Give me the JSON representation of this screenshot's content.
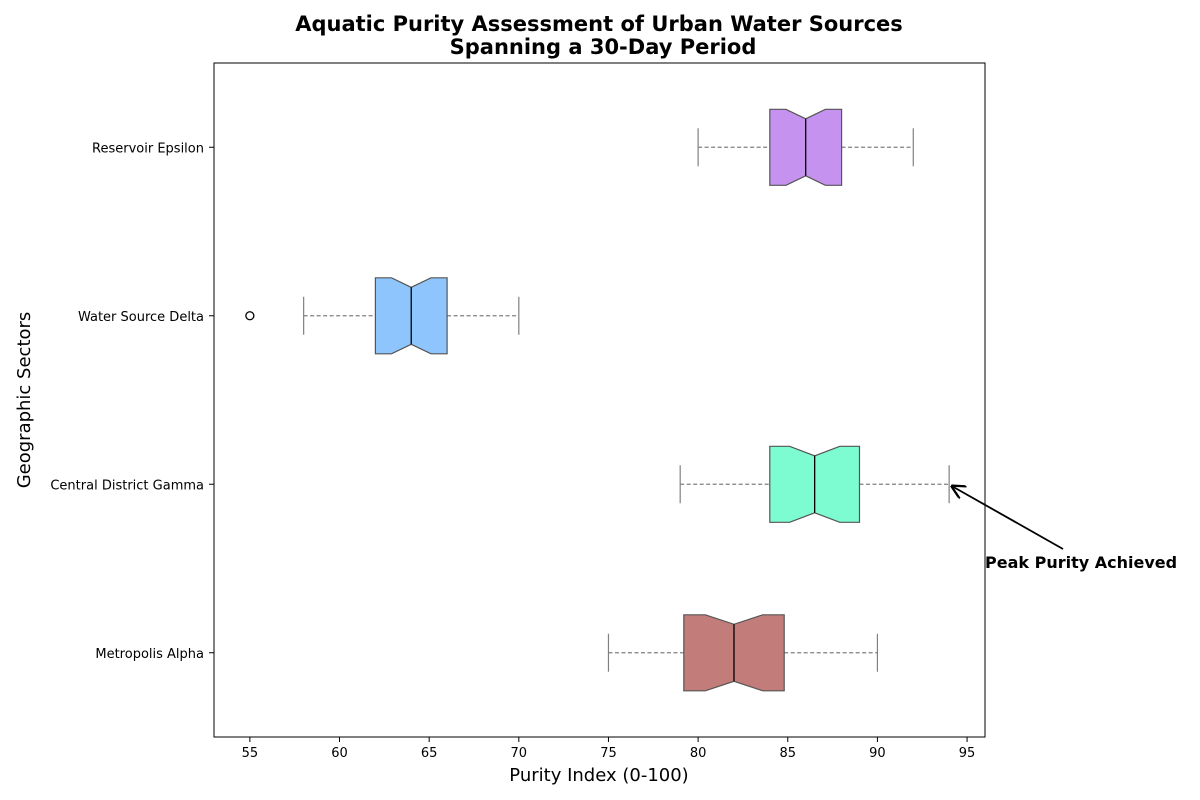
{
  "chart_data": {
    "type": "boxplot",
    "orientation": "horizontal",
    "notched": true,
    "title_line1": "Aquatic Purity Assessment of Urban Water Sources",
    "title_line2": "Spanning a 30-Day Period",
    "xlabel": "Purity Index (0-100)",
    "ylabel": "Geographic Sectors",
    "xlim": [
      53,
      96
    ],
    "xticks": [
      55,
      60,
      65,
      70,
      75,
      80,
      85,
      90,
      95
    ],
    "grid": false,
    "categories": [
      "Metropolis Alpha",
      "Central District Gamma",
      "Water Source Delta",
      "Reservoir Epsilon"
    ],
    "boxes": [
      {
        "category": "Metropolis Alpha",
        "whisker_low": 75,
        "q1": 79.2,
        "median": 82,
        "q3": 84.8,
        "whisker_high": 90,
        "notch_low": 80.4,
        "notch_high": 83.6,
        "outliers": [],
        "color": "#c27d7b"
      },
      {
        "category": "Central District Gamma",
        "whisker_low": 79,
        "q1": 84,
        "median": 86.5,
        "q3": 89,
        "whisker_high": 94,
        "notch_low": 85.1,
        "notch_high": 87.9,
        "outliers": [],
        "color": "#7cfcd0"
      },
      {
        "category": "Water Source Delta",
        "whisker_low": 58,
        "q1": 62,
        "median": 64,
        "q3": 66,
        "whisker_high": 70,
        "notch_low": 62.9,
        "notch_high": 65.1,
        "outliers": [
          55
        ],
        "color": "#8ec5fc"
      },
      {
        "category": "Reservoir Epsilon",
        "whisker_low": 80,
        "q1": 84,
        "median": 86,
        "q3": 88,
        "whisker_high": 92,
        "notch_low": 84.9,
        "notch_high": 87.1,
        "outliers": [],
        "color": "#c592ef"
      }
    ],
    "annotations": [
      {
        "text": "Peak Purity Achieved",
        "target_category": "Central District Gamma",
        "target_value": 94
      }
    ]
  }
}
